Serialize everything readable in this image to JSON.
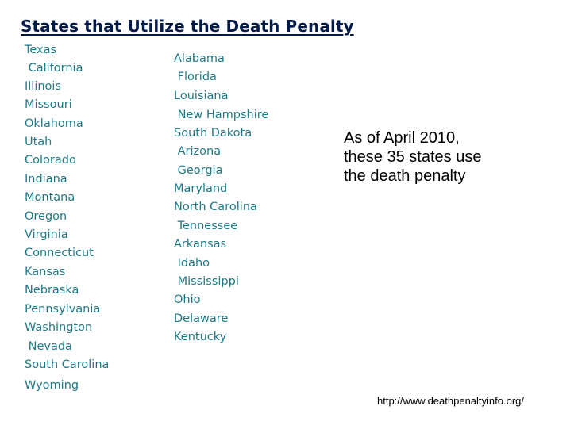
{
  "title": "States that Utilize the Death Penalty",
  "column_left": [
    "Texas",
    " California",
    "Illinois",
    "Missouri",
    "Oklahoma",
    "Utah",
    "Colorado",
    "Indiana",
    "Montana",
    "Oregon",
    "Virginia",
    "Connecticut",
    "Kansas",
    "Nebraska",
    "Pennsylvania",
    "Washington",
    " Nevada",
    "South Carolina",
    "Wyoming"
  ],
  "column_right": [
    "Alabama",
    " Florida",
    "Louisiana",
    " New Hampshire",
    "South Dakota",
    " Arizona",
    " Georgia",
    "Maryland",
    "North Carolina",
    " Tennessee",
    "Arkansas",
    " Idaho",
    " Mississippi",
    "Ohio",
    "Delaware",
    "Kentucky"
  ],
  "note": {
    "line1": "As of April 2010,",
    "line2": "these 35 states use",
    "line3": "the death penalty"
  },
  "source": "http://www.deathpenaltyinfo.org/",
  "colors": {
    "title": "#001a4a",
    "state_text": "#1e7a86",
    "note_text": "#000000"
  }
}
